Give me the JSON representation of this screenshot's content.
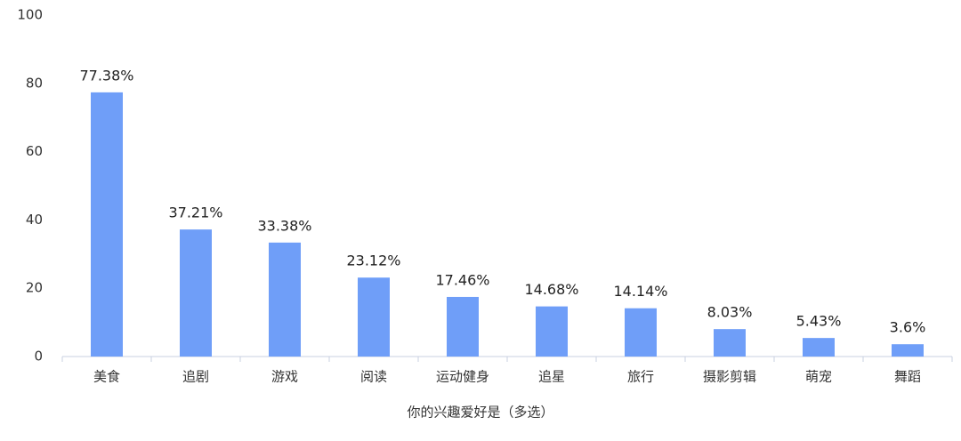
{
  "chart_data": {
    "type": "bar",
    "x_label": "你的兴趣爱好是（多选）",
    "categories": [
      "美食",
      "追剧",
      "游戏",
      "阅读",
      "运动健身",
      "追星",
      "旅行",
      "摄影剪辑",
      "萌宠",
      "舞蹈"
    ],
    "values": [
      77.38,
      37.21,
      33.38,
      23.12,
      17.46,
      14.68,
      14.14,
      8.03,
      5.43,
      3.6
    ],
    "value_labels": [
      "77.38%",
      "37.21%",
      "33.38%",
      "23.12%",
      "17.46%",
      "14.68%",
      "14.14%",
      "8.03%",
      "5.43%",
      "3.6%"
    ],
    "color": "#6f9ef8",
    "ylim": [
      0,
      100
    ],
    "yticks": [
      0,
      20,
      40,
      60,
      80,
      100
    ],
    "grid": false
  }
}
